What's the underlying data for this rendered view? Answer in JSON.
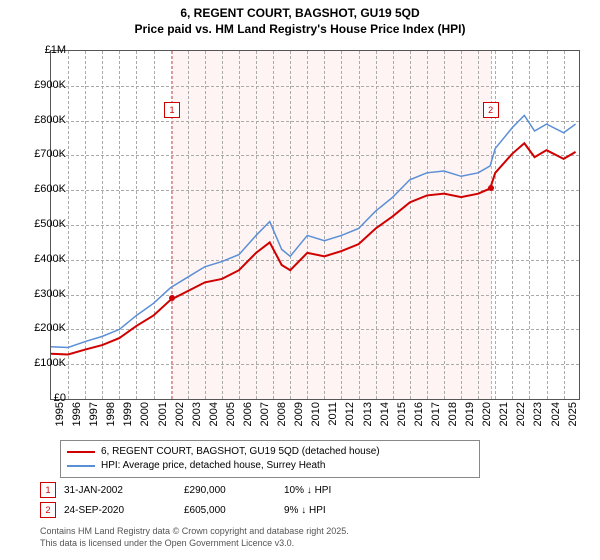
{
  "title_line1": "6, REGENT COURT, BAGSHOT, GU19 5QD",
  "title_line2": "Price paid vs. HM Land Registry's House Price Index (HPI)",
  "title_fontsize": 12,
  "chart": {
    "type": "line",
    "x_axis": {
      "min": 1995,
      "max": 2025.9,
      "ticks": [
        1995,
        1996,
        1997,
        1998,
        1999,
        2000,
        2001,
        2002,
        2003,
        2004,
        2005,
        2006,
        2007,
        2008,
        2009,
        2010,
        2011,
        2012,
        2013,
        2014,
        2015,
        2016,
        2017,
        2018,
        2019,
        2020,
        2021,
        2022,
        2023,
        2024,
        2025
      ]
    },
    "y_axis": {
      "min": 0,
      "max": 1000000,
      "ticks": [
        0,
        100000,
        200000,
        300000,
        400000,
        500000,
        600000,
        700000,
        800000,
        900000,
        1000000
      ],
      "labels": [
        "£0",
        "£100K",
        "£200K",
        "£300K",
        "£400K",
        "£500K",
        "£600K",
        "£700K",
        "£800K",
        "£900K",
        "£1M"
      ]
    },
    "background_color": "#ffffff",
    "grid_color": "#aaaaaa",
    "band_color": "#fff4f4",
    "band_ranges": [
      [
        2002.08,
        2020.73
      ]
    ],
    "plot_border_color": "#555555",
    "series": [
      {
        "name": "hpi",
        "label": "HPI: Average price, detached house, Surrey Heath",
        "color": "#5a8fd6",
        "width": 1.5,
        "points": [
          [
            1995,
            150000
          ],
          [
            1996,
            148000
          ],
          [
            1997,
            165000
          ],
          [
            1998,
            180000
          ],
          [
            1999,
            200000
          ],
          [
            2000,
            240000
          ],
          [
            2001,
            275000
          ],
          [
            2002,
            320000
          ],
          [
            2003,
            350000
          ],
          [
            2004,
            380000
          ],
          [
            2005,
            395000
          ],
          [
            2006,
            415000
          ],
          [
            2007,
            470000
          ],
          [
            2007.8,
            510000
          ],
          [
            2008.5,
            430000
          ],
          [
            2009,
            410000
          ],
          [
            2010,
            470000
          ],
          [
            2011,
            455000
          ],
          [
            2012,
            470000
          ],
          [
            2013,
            490000
          ],
          [
            2014,
            540000
          ],
          [
            2015,
            580000
          ],
          [
            2016,
            630000
          ],
          [
            2017,
            650000
          ],
          [
            2018,
            655000
          ],
          [
            2019,
            640000
          ],
          [
            2020,
            650000
          ],
          [
            2020.7,
            670000
          ],
          [
            2021,
            720000
          ],
          [
            2022,
            780000
          ],
          [
            2022.7,
            815000
          ],
          [
            2023.3,
            770000
          ],
          [
            2024,
            790000
          ],
          [
            2025,
            765000
          ],
          [
            2025.7,
            790000
          ]
        ]
      },
      {
        "name": "price_paid",
        "label": "6, REGENT COURT, BAGSHOT, GU19 5QD (detached house)",
        "color": "#d00000",
        "width": 2,
        "points": [
          [
            1995,
            130000
          ],
          [
            1996,
            128000
          ],
          [
            1997,
            142000
          ],
          [
            1998,
            155000
          ],
          [
            1999,
            175000
          ],
          [
            2000,
            210000
          ],
          [
            2001,
            240000
          ],
          [
            2002,
            285000
          ],
          [
            2003,
            310000
          ],
          [
            2004,
            335000
          ],
          [
            2005,
            345000
          ],
          [
            2006,
            370000
          ],
          [
            2007,
            420000
          ],
          [
            2007.8,
            450000
          ],
          [
            2008.5,
            385000
          ],
          [
            2009,
            370000
          ],
          [
            2010,
            420000
          ],
          [
            2011,
            410000
          ],
          [
            2012,
            425000
          ],
          [
            2013,
            445000
          ],
          [
            2014,
            490000
          ],
          [
            2015,
            525000
          ],
          [
            2016,
            565000
          ],
          [
            2017,
            585000
          ],
          [
            2018,
            590000
          ],
          [
            2019,
            580000
          ],
          [
            2020,
            590000
          ],
          [
            2020.7,
            605000
          ],
          [
            2021,
            650000
          ],
          [
            2022,
            705000
          ],
          [
            2022.7,
            735000
          ],
          [
            2023.3,
            695000
          ],
          [
            2024,
            715000
          ],
          [
            2025,
            690000
          ],
          [
            2025.7,
            710000
          ]
        ]
      }
    ],
    "sale_points": [
      {
        "x": 2002.08,
        "y": 290000,
        "color": "#d00000"
      },
      {
        "x": 2020.73,
        "y": 605000,
        "color": "#d00000"
      }
    ],
    "markers": [
      {
        "num": "1",
        "x": 2002.08,
        "y_offset": 830000
      },
      {
        "num": "2",
        "x": 2020.73,
        "y_offset": 830000
      }
    ]
  },
  "legend": {
    "border_color": "#888888",
    "fontsize": 10
  },
  "annotations": [
    {
      "num": "1",
      "date": "31-JAN-2002",
      "price": "£290,000",
      "delta": "10% ↓ HPI"
    },
    {
      "num": "2",
      "date": "24-SEP-2020",
      "price": "£605,000",
      "delta": "9% ↓ HPI"
    }
  ],
  "footer_line1": "Contains HM Land Registry data © Crown copyright and database right 2025.",
  "footer_line2": "This data is licensed under the Open Government Licence v3.0."
}
